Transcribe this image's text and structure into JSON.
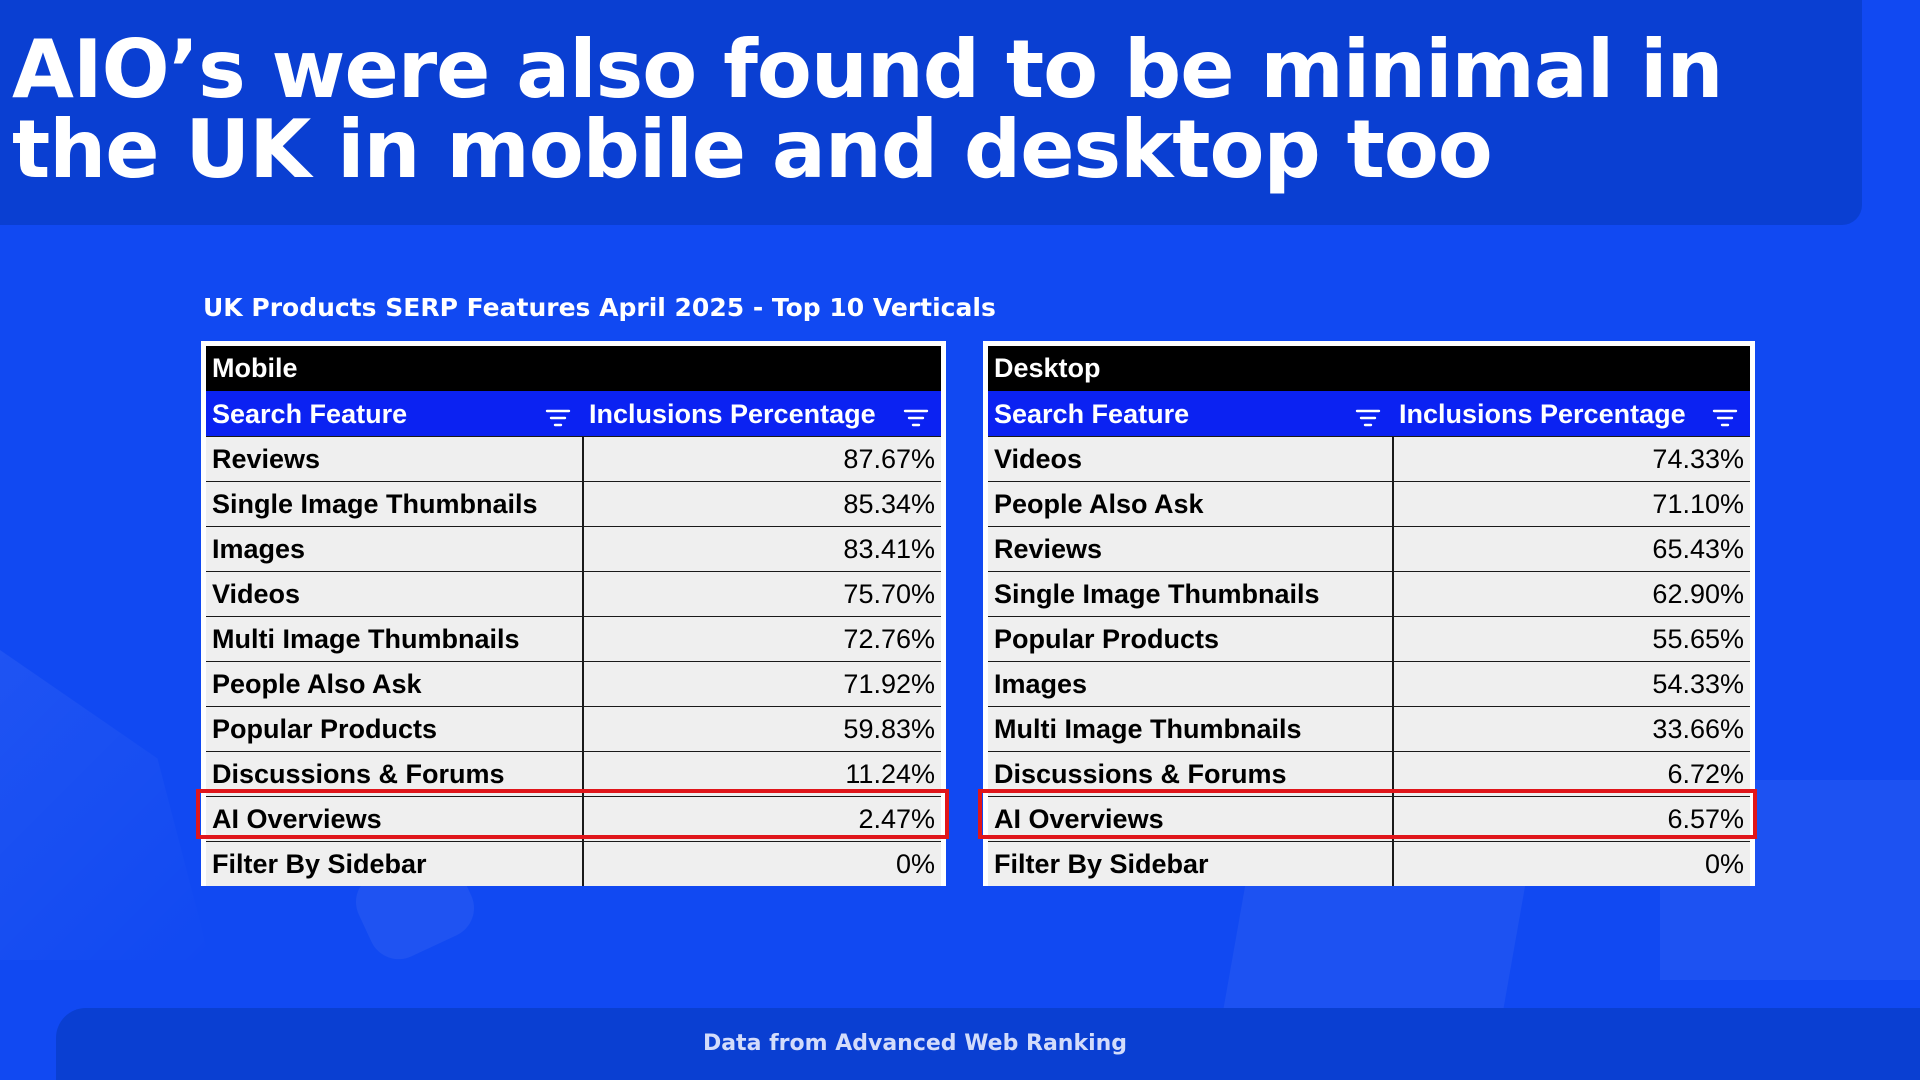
{
  "slide": {
    "title": " AIO’s were also found to be minimal in\nthe UK in mobile and desktop too",
    "chart_caption": "UK Products SERP Features April 2025 - Top 10 Verticals",
    "footer": "Data from Advanced Web Ranking"
  },
  "colors": {
    "background": "#1149f2",
    "header_band": "#0a3fd2",
    "table_group_header": "#000000",
    "table_column_header": "#0b22f2",
    "table_cell": "#efefef",
    "highlight": "#e0161b"
  },
  "icons": {
    "column_filter": "filter-icon"
  },
  "chart_data": [
    {
      "type": "table",
      "title": "Mobile",
      "columns": [
        "Search Feature",
        "Inclusions Percentage"
      ],
      "rows": [
        {
          "feature": "Reviews",
          "pct": "87.67%"
        },
        {
          "feature": "Single Image Thumbnails",
          "pct": "85.34%"
        },
        {
          "feature": "Images",
          "pct": "83.41%"
        },
        {
          "feature": "Videos",
          "pct": "75.70%"
        },
        {
          "feature": "Multi Image Thumbnails",
          "pct": "72.76%"
        },
        {
          "feature": "People Also Ask",
          "pct": "71.92%"
        },
        {
          "feature": "Popular Products",
          "pct": "59.83%"
        },
        {
          "feature": "Discussions & Forums",
          "pct": "11.24%"
        },
        {
          "feature": "AI Overviews",
          "pct": "2.47%",
          "highlighted": true
        },
        {
          "feature": "Filter By Sidebar",
          "pct": "0%"
        }
      ]
    },
    {
      "type": "table",
      "title": "Desktop",
      "columns": [
        "Search Feature",
        "Inclusions Percentage"
      ],
      "rows": [
        {
          "feature": "Videos",
          "pct": "74.33%"
        },
        {
          "feature": "People Also Ask",
          "pct": "71.10%"
        },
        {
          "feature": "Reviews",
          "pct": "65.43%"
        },
        {
          "feature": "Single Image Thumbnails",
          "pct": "62.90%"
        },
        {
          "feature": "Popular Products",
          "pct": "55.65%"
        },
        {
          "feature": "Images",
          "pct": "54.33%"
        },
        {
          "feature": "Multi Image Thumbnails",
          "pct": "33.66%"
        },
        {
          "feature": "Discussions & Forums",
          "pct": "6.72%"
        },
        {
          "feature": "AI Overviews",
          "pct": "6.57%",
          "highlighted": true
        },
        {
          "feature": "Filter By Sidebar",
          "pct": "0%"
        }
      ]
    }
  ]
}
